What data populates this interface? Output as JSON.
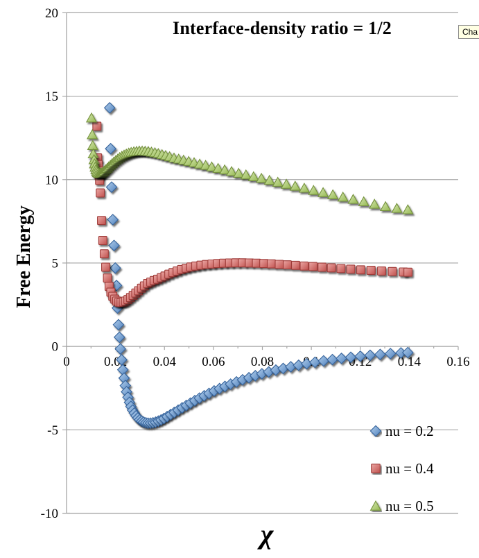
{
  "tooltip": {
    "text": "Cha"
  },
  "chart_data": {
    "type": "scatter",
    "title": "Interface-density ratio = 1/2",
    "xlabel": "χ",
    "ylabel": "Free Energy",
    "xlim": [
      0,
      0.16
    ],
    "ylim": [
      -10,
      20
    ],
    "x_ticks": [
      0,
      0.02,
      0.04,
      0.06,
      0.08,
      0.1,
      0.12,
      0.14,
      0.16
    ],
    "x_tick_labels": [
      "0",
      "0.02",
      "0.04",
      "0.06",
      "0.08",
      "0.1",
      "0.12",
      "0.14",
      "0.16"
    ],
    "x_minor_ticks": [
      0.01,
      0.03,
      0.05,
      0.07,
      0.09,
      0.11,
      0.13,
      0.15
    ],
    "y_ticks": [
      20,
      15,
      10,
      5,
      0,
      -5,
      -10
    ],
    "y_tick_labels": [
      "20",
      "15",
      "10",
      "5",
      "0",
      "-5",
      "-10"
    ],
    "grid": "horizontal-gridlines-only",
    "legend_position": "inside-bottom-right",
    "series": [
      {
        "name": "nu = 0.2",
        "marker": "diamond",
        "color": "#4F81BD",
        "points": [
          [
            0.0176,
            14.3
          ],
          [
            0.018,
            11.85
          ],
          [
            0.0184,
            9.55
          ],
          [
            0.0189,
            7.6
          ],
          [
            0.0194,
            6.05
          ],
          [
            0.0199,
            4.7
          ],
          [
            0.0204,
            3.65
          ],
          [
            0.0208,
            2.3
          ],
          [
            0.0212,
            1.3
          ],
          [
            0.0216,
            0.55
          ],
          [
            0.022,
            -0.15
          ],
          [
            0.0225,
            -0.8
          ],
          [
            0.023,
            -1.4
          ],
          [
            0.0235,
            -1.9
          ],
          [
            0.024,
            -2.35
          ],
          [
            0.0245,
            -2.72
          ],
          [
            0.0251,
            -3.05
          ],
          [
            0.0257,
            -3.35
          ],
          [
            0.0263,
            -3.6
          ],
          [
            0.027,
            -3.82
          ],
          [
            0.0277,
            -4.0
          ],
          [
            0.0284,
            -4.16
          ],
          [
            0.0291,
            -4.29
          ],
          [
            0.0299,
            -4.4
          ],
          [
            0.0307,
            -4.48
          ],
          [
            0.0315,
            -4.54
          ],
          [
            0.0324,
            -4.58
          ],
          [
            0.0333,
            -4.6
          ],
          [
            0.0343,
            -4.6
          ],
          [
            0.0353,
            -4.58
          ],
          [
            0.0364,
            -4.54
          ],
          [
            0.0375,
            -4.48
          ],
          [
            0.0386,
            -4.41
          ],
          [
            0.0398,
            -4.32
          ],
          [
            0.0411,
            -4.21
          ],
          [
            0.0425,
            -4.09
          ],
          [
            0.044,
            -3.96
          ],
          [
            0.0456,
            -3.82
          ],
          [
            0.0472,
            -3.68
          ],
          [
            0.0489,
            -3.54
          ],
          [
            0.0506,
            -3.4
          ],
          [
            0.0524,
            -3.25
          ],
          [
            0.0543,
            -3.1
          ],
          [
            0.0562,
            -2.96
          ],
          [
            0.0582,
            -2.82
          ],
          [
            0.0603,
            -2.67
          ],
          [
            0.0625,
            -2.53
          ],
          [
            0.0647,
            -2.4
          ],
          [
            0.067,
            -2.26
          ],
          [
            0.0694,
            -2.13
          ],
          [
            0.0719,
            -2.0
          ],
          [
            0.0745,
            -1.88
          ],
          [
            0.0771,
            -1.76
          ],
          [
            0.0798,
            -1.64
          ],
          [
            0.0826,
            -1.53
          ],
          [
            0.0855,
            -1.42
          ],
          [
            0.0885,
            -1.32
          ],
          [
            0.0916,
            -1.22
          ],
          [
            0.0948,
            -1.13
          ],
          [
            0.0981,
            -1.04
          ],
          [
            0.1015,
            -0.95
          ],
          [
            0.105,
            -0.87
          ],
          [
            0.1086,
            -0.79
          ],
          [
            0.1123,
            -0.72
          ],
          [
            0.1161,
            -0.65
          ],
          [
            0.12,
            -0.59
          ],
          [
            0.124,
            -0.53
          ],
          [
            0.1281,
            -0.48
          ],
          [
            0.1323,
            -0.43
          ],
          [
            0.1366,
            -0.39
          ],
          [
            0.1394,
            -0.37
          ]
        ]
      },
      {
        "name": "nu = 0.4",
        "marker": "square",
        "color": "#C0504D",
        "points": [
          [
            0.0124,
            13.2
          ],
          [
            0.0127,
            11.3
          ],
          [
            0.0129,
            10.9
          ],
          [
            0.0131,
            10.55
          ],
          [
            0.0133,
            10.25
          ],
          [
            0.0135,
            9.95
          ],
          [
            0.0138,
            9.2
          ],
          [
            0.0143,
            7.55
          ],
          [
            0.0148,
            6.35
          ],
          [
            0.0154,
            5.55
          ],
          [
            0.016,
            4.75
          ],
          [
            0.0167,
            4.1
          ],
          [
            0.0174,
            3.6
          ],
          [
            0.0181,
            3.25
          ],
          [
            0.0189,
            3.0
          ],
          [
            0.0197,
            2.83
          ],
          [
            0.0205,
            2.72
          ],
          [
            0.0214,
            2.65
          ],
          [
            0.0223,
            2.63
          ],
          [
            0.0232,
            2.66
          ],
          [
            0.0241,
            2.72
          ],
          [
            0.0251,
            2.81
          ],
          [
            0.0261,
            2.93
          ],
          [
            0.0272,
            3.06
          ],
          [
            0.0283,
            3.2
          ],
          [
            0.0294,
            3.34
          ],
          [
            0.0306,
            3.49
          ],
          [
            0.0318,
            3.63
          ],
          [
            0.0331,
            3.77
          ],
          [
            0.0344,
            3.86
          ],
          [
            0.0358,
            3.95
          ],
          [
            0.0372,
            4.03
          ],
          [
            0.0387,
            4.12
          ],
          [
            0.0402,
            4.22
          ],
          [
            0.0418,
            4.33
          ],
          [
            0.0435,
            4.43
          ],
          [
            0.0452,
            4.52
          ],
          [
            0.047,
            4.61
          ],
          [
            0.0489,
            4.69
          ],
          [
            0.0508,
            4.76
          ],
          [
            0.0528,
            4.82
          ],
          [
            0.0549,
            4.87
          ],
          [
            0.0571,
            4.91
          ],
          [
            0.0594,
            4.94
          ],
          [
            0.0617,
            4.97
          ],
          [
            0.0641,
            4.99
          ],
          [
            0.0666,
            5.0
          ],
          [
            0.0692,
            5.01
          ],
          [
            0.0719,
            5.01
          ],
          [
            0.0747,
            5.0
          ],
          [
            0.0776,
            4.99
          ],
          [
            0.0806,
            4.97
          ],
          [
            0.0837,
            4.95
          ],
          [
            0.0869,
            4.92
          ],
          [
            0.0902,
            4.89
          ],
          [
            0.0936,
            4.86
          ],
          [
            0.0971,
            4.82
          ],
          [
            0.1007,
            4.79
          ],
          [
            0.1044,
            4.75
          ],
          [
            0.1082,
            4.71
          ],
          [
            0.1121,
            4.67
          ],
          [
            0.1161,
            4.63
          ],
          [
            0.1202,
            4.59
          ],
          [
            0.1244,
            4.56
          ],
          [
            0.1287,
            4.52
          ],
          [
            0.1331,
            4.49
          ],
          [
            0.1376,
            4.46
          ],
          [
            0.1395,
            4.45
          ]
        ]
      },
      {
        "name": "nu = 0.5",
        "marker": "triangle",
        "color": "#9BBB59",
        "points": [
          [
            0.0102,
            13.7
          ],
          [
            0.0105,
            12.7
          ],
          [
            0.0107,
            12.05
          ],
          [
            0.0109,
            11.55
          ],
          [
            0.0112,
            11.2
          ],
          [
            0.0114,
            10.95
          ],
          [
            0.0117,
            10.75
          ],
          [
            0.012,
            10.6
          ],
          [
            0.0123,
            10.5
          ],
          [
            0.0127,
            10.43
          ],
          [
            0.0131,
            10.39
          ],
          [
            0.0135,
            10.37
          ],
          [
            0.0139,
            10.38
          ],
          [
            0.0144,
            10.41
          ],
          [
            0.0149,
            10.46
          ],
          [
            0.0154,
            10.52
          ],
          [
            0.016,
            10.6
          ],
          [
            0.0166,
            10.68
          ],
          [
            0.0172,
            10.77
          ],
          [
            0.0179,
            10.87
          ],
          [
            0.0186,
            10.96
          ],
          [
            0.0193,
            11.06
          ],
          [
            0.0201,
            11.15
          ],
          [
            0.0209,
            11.24
          ],
          [
            0.0217,
            11.33
          ],
          [
            0.0226,
            11.41
          ],
          [
            0.0235,
            11.48
          ],
          [
            0.0244,
            11.54
          ],
          [
            0.0254,
            11.6
          ],
          [
            0.0264,
            11.64
          ],
          [
            0.0275,
            11.68
          ],
          [
            0.0286,
            11.7
          ],
          [
            0.0297,
            11.72
          ],
          [
            0.0309,
            11.72
          ],
          [
            0.0321,
            11.71
          ],
          [
            0.0334,
            11.69
          ],
          [
            0.0347,
            11.66
          ],
          [
            0.0361,
            11.62
          ],
          [
            0.0375,
            11.57
          ],
          [
            0.039,
            11.51
          ],
          [
            0.0405,
            11.45
          ],
          [
            0.0421,
            11.38
          ],
          [
            0.0439,
            11.3
          ],
          [
            0.0458,
            11.24
          ],
          [
            0.0478,
            11.17
          ],
          [
            0.0499,
            11.1
          ],
          [
            0.0521,
            11.02
          ],
          [
            0.0544,
            10.94
          ],
          [
            0.0568,
            10.86
          ],
          [
            0.0593,
            10.77
          ],
          [
            0.0619,
            10.68
          ],
          [
            0.0646,
            10.59
          ],
          [
            0.0674,
            10.49
          ],
          [
            0.0703,
            10.39
          ],
          [
            0.0733,
            10.29
          ],
          [
            0.0764,
            10.18
          ],
          [
            0.0796,
            10.08
          ],
          [
            0.0829,
            9.96
          ],
          [
            0.0863,
            9.85
          ],
          [
            0.0898,
            9.73
          ],
          [
            0.0934,
            9.61
          ],
          [
            0.0971,
            9.49
          ],
          [
            0.1009,
            9.36
          ],
          [
            0.1048,
            9.23
          ],
          [
            0.1088,
            9.1
          ],
          [
            0.1129,
            8.96
          ],
          [
            0.1171,
            8.82
          ],
          [
            0.1214,
            8.68
          ],
          [
            0.1258,
            8.53
          ],
          [
            0.1303,
            8.39
          ],
          [
            0.1349,
            8.28
          ],
          [
            0.1394,
            8.2
          ]
        ]
      }
    ]
  }
}
